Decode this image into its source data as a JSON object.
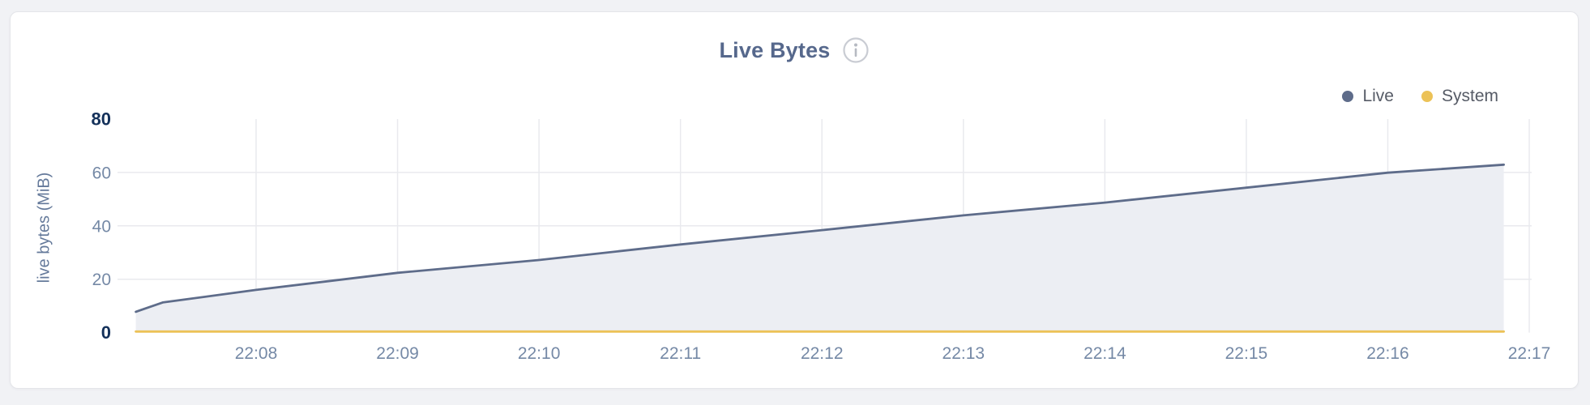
{
  "header": {
    "title": "Live Bytes"
  },
  "legend": {
    "items": [
      {
        "label": "Live",
        "color": "#5e6c8a"
      },
      {
        "label": "System",
        "color": "#ecc257"
      }
    ]
  },
  "colors": {
    "live_line": "#5e6c8a",
    "live_area_fill": "#eceef3",
    "system_line": "#ecc257",
    "gridline": "#e9eaee",
    "tick_label": "#7589a6",
    "tick_label_emphasis": "#14315a",
    "title": "#56688c",
    "card_background": "#ffffff",
    "page_background": "#f1f2f5"
  },
  "chart_data": {
    "type": "area",
    "title": "Live Bytes",
    "xlabel": "",
    "ylabel": "live bytes (MiB)",
    "xlim_minutes_after_2200": [
      7.02,
      17
    ],
    "ylim": [
      0,
      80
    ],
    "grid": true,
    "legend_position": "top-right",
    "x_ticks": [
      {
        "t": 8,
        "label": "22:08"
      },
      {
        "t": 9,
        "label": "22:09"
      },
      {
        "t": 10,
        "label": "22:10"
      },
      {
        "t": 11,
        "label": "22:11"
      },
      {
        "t": 12,
        "label": "22:12"
      },
      {
        "t": 13,
        "label": "22:13"
      },
      {
        "t": 14,
        "label": "22:14"
      },
      {
        "t": 15,
        "label": "22:15"
      },
      {
        "t": 16,
        "label": "22:16"
      },
      {
        "t": 17,
        "label": "22:17"
      }
    ],
    "y_ticks": [
      {
        "v": 0,
        "label": "0",
        "emphasis": true,
        "gridline": false
      },
      {
        "v": 20,
        "label": "20",
        "emphasis": false,
        "gridline": true
      },
      {
        "v": 40,
        "label": "40",
        "emphasis": false,
        "gridline": true
      },
      {
        "v": 60,
        "label": "60",
        "emphasis": false,
        "gridline": true
      },
      {
        "v": 80,
        "label": "80",
        "emphasis": true,
        "gridline": false
      }
    ],
    "series": [
      {
        "name": "Live",
        "color": "#5e6c8a",
        "fill": "#eceef3",
        "points": [
          {
            "t": 7.15,
            "v": 7.8
          },
          {
            "t": 7.34,
            "v": 11.3
          },
          {
            "t": 8.0,
            "v": 16.0
          },
          {
            "t": 9.0,
            "v": 22.4
          },
          {
            "t": 10.0,
            "v": 27.2
          },
          {
            "t": 11.0,
            "v": 33.0
          },
          {
            "t": 12.0,
            "v": 38.4
          },
          {
            "t": 13.0,
            "v": 43.9
          },
          {
            "t": 14.0,
            "v": 48.7
          },
          {
            "t": 15.0,
            "v": 54.3
          },
          {
            "t": 16.0,
            "v": 59.9
          },
          {
            "t": 16.82,
            "v": 62.9
          }
        ]
      },
      {
        "name": "System",
        "color": "#ecc257",
        "fill": null,
        "points": [
          {
            "t": 7.15,
            "v": 0.4
          },
          {
            "t": 10.0,
            "v": 0.4
          },
          {
            "t": 13.0,
            "v": 0.4
          },
          {
            "t": 16.82,
            "v": 0.4
          }
        ]
      }
    ]
  }
}
